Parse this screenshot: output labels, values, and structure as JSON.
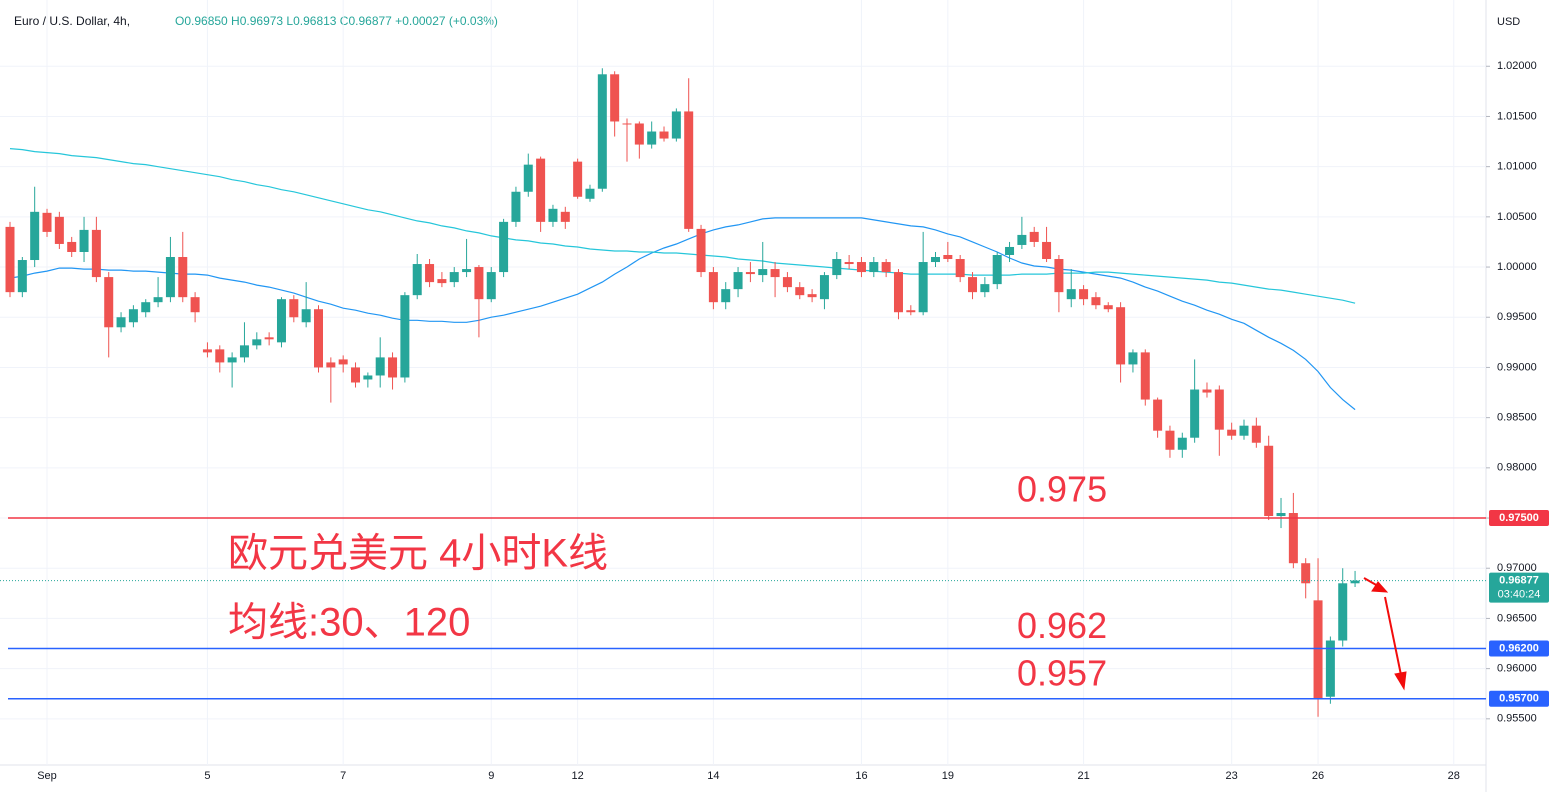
{
  "chart_data": {
    "type": "candlestick",
    "title": "Euro / U.S. Dollar, 4h,",
    "legend_text": "O0.96850 H0.96973 L0.96813 C0.96877 +0.00027 (+0.03%)",
    "y_axis_label": "USD",
    "up_color": "#26a69a",
    "down_color": "#ef5350",
    "categories": [
      null,
      null,
      null,
      "Sep",
      null,
      null,
      null,
      null,
      null,
      null,
      null,
      null,
      null,
      null,
      null,
      null,
      "5",
      null,
      null,
      null,
      null,
      null,
      null,
      null,
      null,
      null,
      null,
      "7",
      null,
      null,
      null,
      null,
      null,
      null,
      null,
      null,
      null,
      null,
      null,
      "9",
      null,
      null,
      null,
      null,
      null,
      null,
      "12",
      null,
      null,
      null,
      null,
      null,
      null,
      null,
      null,
      null,
      null,
      "14",
      null,
      null,
      null,
      null,
      null,
      null,
      null,
      null,
      null,
      null,
      null,
      "16",
      null,
      null,
      null,
      null,
      null,
      null,
      "19",
      null,
      null,
      null,
      null,
      null,
      null,
      null,
      null,
      null,
      null,
      "21",
      null,
      null,
      null,
      null,
      null,
      null,
      null,
      null,
      null,
      null,
      null,
      "23",
      null,
      null,
      null,
      null,
      null,
      null,
      "26",
      null,
      null,
      null,
      null,
      null,
      null,
      null,
      null,
      null,
      null,
      "28"
    ],
    "open": [
      1.004,
      0.9975,
      1.0007,
      1.0054,
      1.005,
      1.0025,
      1.0015,
      1.0037,
      0.999,
      0.994,
      0.9945,
      0.9955,
      0.9965,
      0.997,
      1.001,
      0.997,
      0.9918,
      0.9918,
      0.9905,
      0.991,
      0.9922,
      0.993,
      0.9925,
      0.9968,
      0.9945,
      0.9958,
      0.9905,
      0.9908,
      0.99,
      0.9888,
      0.9892,
      0.991,
      0.989,
      0.9972,
      1.0003,
      0.9988,
      0.9985,
      0.9995,
      1.0,
      0.9968,
      0.9995,
      1.0045,
      1.0075,
      1.0108,
      1.0045,
      1.0055,
      1.0105,
      1.0068,
      1.0078,
      1.0192,
      1.0143,
      1.0143,
      1.0122,
      1.0135,
      1.0128,
      1.0155,
      1.0038,
      0.9995,
      0.9965,
      0.9978,
      0.9995,
      0.9992,
      0.9998,
      0.999,
      0.998,
      0.9973,
      0.9968,
      0.9992,
      1.0005,
      1.0005,
      0.9995,
      1.0005,
      0.9995,
      0.9957,
      0.9955,
      1.0005,
      1.0012,
      1.0008,
      0.999,
      0.9975,
      0.9983,
      1.0012,
      1.0022,
      1.0035,
      1.0025,
      1.0008,
      0.9968,
      0.9978,
      0.997,
      0.9962,
      0.996,
      0.9903,
      0.9915,
      0.9868,
      0.9837,
      0.9818,
      0.983,
      0.9878,
      0.9878,
      0.9838,
      0.9832,
      0.9842,
      0.9822,
      0.9752,
      0.9755,
      0.9705,
      0.9668,
      0.9572,
      0.9628,
      0.9685,
      null,
      null,
      null,
      null,
      null,
      null,
      null,
      null
    ],
    "high": [
      1.0045,
      1.001,
      1.008,
      1.0058,
      1.0055,
      1.003,
      1.005,
      1.005,
      0.9995,
      0.9955,
      0.9962,
      0.9968,
      0.999,
      1.003,
      1.0035,
      0.9975,
      0.9925,
      0.9922,
      0.9915,
      0.9945,
      0.9935,
      0.9935,
      0.997,
      0.9972,
      0.9985,
      0.9962,
      0.991,
      0.9912,
      0.9905,
      0.9895,
      0.993,
      0.9915,
      0.9975,
      1.0013,
      1.0008,
      0.9995,
      1.0,
      1.0028,
      1.0002,
      1.0,
      1.0048,
      1.008,
      1.0113,
      1.011,
      1.0062,
      1.006,
      1.0108,
      1.0082,
      1.0198,
      1.0195,
      1.0148,
      1.0145,
      1.0145,
      1.014,
      1.0158,
      1.0188,
      1.0042,
      1.0,
      0.9985,
      1.0,
      1.0005,
      1.0025,
      1.0005,
      0.9995,
      0.9985,
      0.9978,
      0.9995,
      1.0015,
      1.0012,
      1.001,
      1.001,
      1.0008,
      0.9998,
      0.9962,
      1.0035,
      1.0015,
      1.0025,
      1.0012,
      0.9995,
      0.999,
      1.0015,
      1.0025,
      1.005,
      1.004,
      1.004,
      1.0012,
      0.9998,
      0.9982,
      0.9975,
      0.9965,
      0.9965,
      0.9918,
      0.9918,
      0.987,
      0.9842,
      0.9835,
      0.9908,
      0.9885,
      0.9882,
      0.9845,
      0.9848,
      0.985,
      0.9832,
      0.977,
      0.9775,
      0.971,
      0.971,
      0.9632,
      0.97,
      0.96973,
      null,
      null,
      null,
      null,
      null,
      null,
      null,
      null
    ],
    "low": [
      0.997,
      0.997,
      1.0,
      1.003,
      1.0018,
      1.001,
      1.0005,
      0.9985,
      0.991,
      0.9935,
      0.994,
      0.995,
      0.996,
      0.9965,
      0.9965,
      0.9945,
      0.991,
      0.9895,
      0.988,
      0.9905,
      0.9918,
      0.9922,
      0.992,
      0.9945,
      0.994,
      0.9895,
      0.9865,
      0.9895,
      0.988,
      0.988,
      0.988,
      0.9878,
      0.9885,
      0.9968,
      0.998,
      0.998,
      0.998,
      0.999,
      0.993,
      0.9965,
      0.999,
      1.004,
      1.007,
      1.0035,
      1.004,
      1.0038,
      1.0068,
      1.0065,
      1.0075,
      1.013,
      1.0105,
      1.0108,
      1.0118,
      1.0125,
      1.0125,
      1.0035,
      0.999,
      0.9958,
      0.9958,
      0.997,
      0.9985,
      0.9985,
      0.997,
      0.9975,
      0.9968,
      0.9965,
      0.9958,
      0.9988,
      0.9998,
      0.999,
      0.999,
      0.999,
      0.9948,
      0.9952,
      0.9952,
      1.0,
      1.0005,
      0.9985,
      0.9968,
      0.997,
      0.9978,
      1.0005,
      1.0018,
      1.002,
      1.0005,
      0.9955,
      0.996,
      0.9962,
      0.9958,
      0.9955,
      0.9885,
      0.9895,
      0.9862,
      0.983,
      0.981,
      0.981,
      0.9825,
      0.987,
      0.9812,
      0.9828,
      0.9828,
      0.982,
      0.9748,
      0.974,
      0.97,
      0.967,
      0.9552,
      0.9565,
      0.9622,
      0.96813,
      null,
      null,
      null,
      null,
      null,
      null,
      null,
      null
    ],
    "close": [
      0.9975,
      1.0007,
      1.0055,
      1.0035,
      1.0023,
      1.0015,
      1.0037,
      0.999,
      0.994,
      0.995,
      0.9958,
      0.9965,
      0.997,
      1.001,
      0.997,
      0.9955,
      0.9915,
      0.9905,
      0.991,
      0.9922,
      0.9928,
      0.9928,
      0.9968,
      0.995,
      0.9958,
      0.99,
      0.99,
      0.9903,
      0.9885,
      0.9892,
      0.991,
      0.989,
      0.9972,
      1.0003,
      0.9985,
      0.9984,
      0.9995,
      0.9998,
      0.9968,
      0.9995,
      1.0045,
      1.0075,
      1.0102,
      1.0045,
      1.0058,
      1.0045,
      1.007,
      1.0078,
      1.0192,
      1.0145,
      1.0142,
      1.0122,
      1.0135,
      1.0128,
      1.0155,
      1.0038,
      0.9995,
      0.9965,
      0.9978,
      0.9995,
      0.9993,
      0.9998,
      0.999,
      0.998,
      0.9972,
      0.997,
      0.9992,
      1.0008,
      1.0003,
      0.9995,
      1.0005,
      0.9995,
      0.9955,
      0.9955,
      1.0005,
      1.001,
      1.0008,
      0.999,
      0.9975,
      0.9983,
      1.0012,
      1.002,
      1.0032,
      1.0025,
      1.0008,
      0.9975,
      0.9978,
      0.9968,
      0.9962,
      0.9958,
      0.9903,
      0.9915,
      0.9868,
      0.9837,
      0.9818,
      0.983,
      0.9878,
      0.9875,
      0.9838,
      0.9832,
      0.9842,
      0.9825,
      0.9752,
      0.9755,
      0.9705,
      0.9685,
      0.957,
      0.9628,
      0.9685,
      0.96877,
      null,
      null,
      null,
      null,
      null,
      null,
      null,
      null
    ],
    "moving_averages": [
      {
        "color": "#2196f3",
        "values": [
          0.9989,
          0.9991,
          0.9994,
          0.9996,
          0.9999,
          0.9999,
          0.9998,
          0.9998,
          0.9997,
          0.9997,
          0.9996,
          0.9996,
          0.9995,
          0.9994,
          0.9993,
          0.9993,
          0.9992,
          0.9989,
          0.9987,
          0.9985,
          0.9982,
          0.998,
          0.9977,
          0.9974,
          0.997,
          0.9966,
          0.9963,
          0.9959,
          0.9957,
          0.9954,
          0.9952,
          0.9949,
          0.9947,
          0.9947,
          0.9946,
          0.9946,
          0.9945,
          0.9945,
          0.9947,
          0.995,
          0.9952,
          0.9955,
          0.9958,
          0.9961,
          0.9965,
          0.9969,
          0.9973,
          0.9979,
          0.9985,
          0.9993,
          1.0,
          1.0008,
          1.0014,
          1.0019,
          1.0023,
          1.0028,
          1.0033,
          1.0037,
          1.004,
          1.0042,
          1.0045,
          1.0048,
          1.0049,
          1.0049,
          1.0049,
          1.0049,
          1.0049,
          1.0049,
          1.0049,
          1.0049,
          1.0047,
          1.0045,
          1.0043,
          1.0041,
          1.004,
          1.0037,
          1.0033,
          1.003,
          1.0025,
          1.002,
          1.0015,
          1.0009,
          1.0004,
          1.0001,
          1.0,
          0.9998,
          0.9997,
          0.9995,
          0.9993,
          0.9991,
          0.9989,
          0.9985,
          0.998,
          0.9976,
          0.9971,
          0.9966,
          0.9962,
          0.9957,
          0.9953,
          0.9948,
          0.9944,
          0.9937,
          0.993,
          0.9924,
          0.9917,
          0.9908,
          0.9896,
          0.988,
          0.9868,
          0.9858,
          null,
          null,
          null,
          null,
          null,
          null,
          null,
          null
        ]
      },
      {
        "color": "#26c6da",
        "values": [
          1.0118,
          1.0117,
          1.0115,
          1.0114,
          1.0113,
          1.0111,
          1.011,
          1.0109,
          1.0107,
          1.0105,
          1.0103,
          1.0102,
          1.01,
          1.0098,
          1.0096,
          1.0094,
          1.0092,
          1.009,
          1.0087,
          1.0085,
          1.0082,
          1.008,
          1.0077,
          1.0075,
          1.0072,
          1.0069,
          1.0066,
          1.0063,
          1.006,
          1.0057,
          1.0055,
          1.0052,
          1.0049,
          1.0046,
          1.0044,
          1.0041,
          1.0039,
          1.0036,
          1.0034,
          1.0031,
          1.0029,
          1.0027,
          1.0026,
          1.0024,
          1.0023,
          1.0021,
          1.002,
          1.0018,
          1.0017,
          1.0016,
          1.0016,
          1.0015,
          1.0015,
          1.0014,
          1.0014,
          1.0013,
          1.0012,
          1.0011,
          1.001,
          1.0008,
          1.0007,
          1.0006,
          1.0004,
          1.0003,
          1.0002,
          1.0001,
          1.0,
          0.9999,
          0.9998,
          0.9997,
          0.9996,
          0.9995,
          0.9994,
          0.9993,
          0.9993,
          0.9993,
          0.9993,
          0.9993,
          0.9992,
          0.9992,
          0.9992,
          0.9992,
          0.9993,
          0.9993,
          0.9993,
          0.9994,
          0.9994,
          0.9994,
          0.9995,
          0.9995,
          0.9994,
          0.9993,
          0.9992,
          0.9991,
          0.999,
          0.9989,
          0.9988,
          0.9987,
          0.9985,
          0.9984,
          0.9982,
          0.998,
          0.9978,
          0.9977,
          0.9975,
          0.9973,
          0.9971,
          0.9969,
          0.9967,
          0.9964,
          null,
          null,
          null,
          null,
          null,
          null,
          null,
          null
        ]
      }
    ],
    "levels": [
      {
        "value": 0.975,
        "label": "0.97500",
        "text": "0.975",
        "color": "#f23645"
      },
      {
        "value": 0.962,
        "label": "0.96200",
        "text": "0.962",
        "color": "#2962ff"
      },
      {
        "value": 0.957,
        "label": "0.95700",
        "text": "0.957",
        "color": "#2962ff"
      }
    ],
    "last_price": {
      "value": 0.96877,
      "label": "0.96877",
      "countdown": "03:40:24",
      "color": "#26a69a"
    },
    "annotations": [
      "欧元兑美元 4小时K线",
      "均线:30、120"
    ],
    "annotation_color": "#f23645",
    "ylim": [
      0.9504,
      1.0266
    ],
    "yticks": [
      {
        "value": 0.955,
        "label": "0.95500"
      },
      {
        "value": 0.96,
        "label": "0.96000"
      },
      {
        "value": 0.965,
        "label": "0.96500"
      },
      {
        "value": 0.97,
        "label": "0.97000"
      },
      {
        "value": 0.975,
        "label": "0.97500"
      },
      {
        "value": 0.98,
        "label": "0.98000"
      },
      {
        "value": 0.985,
        "label": "0.98500"
      },
      {
        "value": 0.99,
        "label": "0.99000"
      },
      {
        "value": 0.995,
        "label": "0.99500"
      },
      {
        "value": 1.0,
        "label": "1.00000"
      },
      {
        "value": 1.005,
        "label": "1.00500"
      },
      {
        "value": 1.01,
        "label": "1.01000"
      },
      {
        "value": 1.015,
        "label": "1.01500"
      },
      {
        "value": 1.02,
        "label": "1.02000"
      }
    ],
    "grid": true
  }
}
